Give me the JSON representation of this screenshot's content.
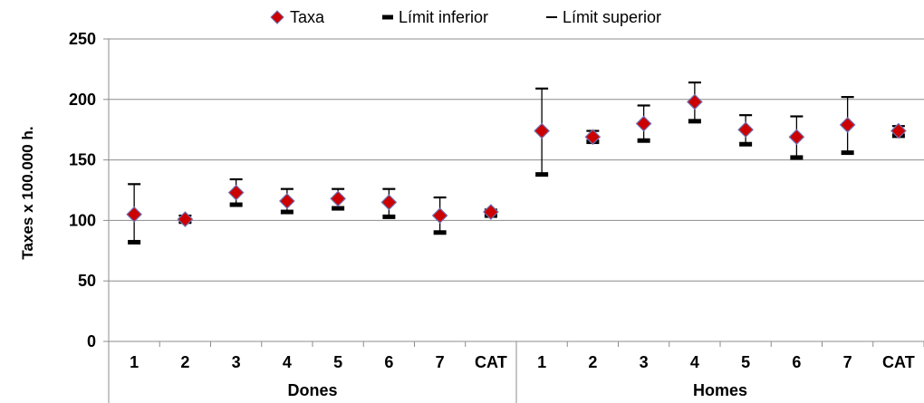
{
  "chart_data": {
    "type": "scatter",
    "title": "",
    "ylabel": "Taxes x 100.000 h.",
    "ylim": [
      0,
      250
    ],
    "yticks": [
      0,
      50,
      100,
      150,
      200,
      250
    ],
    "grid": "horizontal",
    "legend_position": "top",
    "legend": [
      {
        "name": "Taxa",
        "symbol": "diamond",
        "color": "#cc0000",
        "edge": "#6f6fb0"
      },
      {
        "name": "Límit inferior",
        "symbol": "thick-dash",
        "color": "#000000"
      },
      {
        "name": "Límit superior",
        "symbol": "thin-dash",
        "color": "#000000"
      }
    ],
    "groups": [
      {
        "label": "Dones",
        "categories": [
          "1",
          "2",
          "3",
          "4",
          "5",
          "6",
          "7",
          "CAT"
        ],
        "taxa": [
          105,
          101,
          123,
          116,
          118,
          115,
          104,
          107
        ],
        "lower": [
          82,
          99,
          113,
          107,
          110,
          103,
          90,
          104
        ],
        "upper": [
          130,
          104,
          134,
          126,
          126,
          126,
          119,
          109
        ]
      },
      {
        "label": "Homes",
        "categories": [
          "1",
          "2",
          "3",
          "4",
          "5",
          "6",
          "7",
          "CAT"
        ],
        "taxa": [
          174,
          169,
          180,
          198,
          175,
          169,
          179,
          174
        ],
        "lower": [
          138,
          165,
          166,
          182,
          163,
          152,
          156,
          170
        ],
        "upper": [
          209,
          174,
          195,
          214,
          187,
          186,
          202,
          178
        ]
      }
    ]
  }
}
